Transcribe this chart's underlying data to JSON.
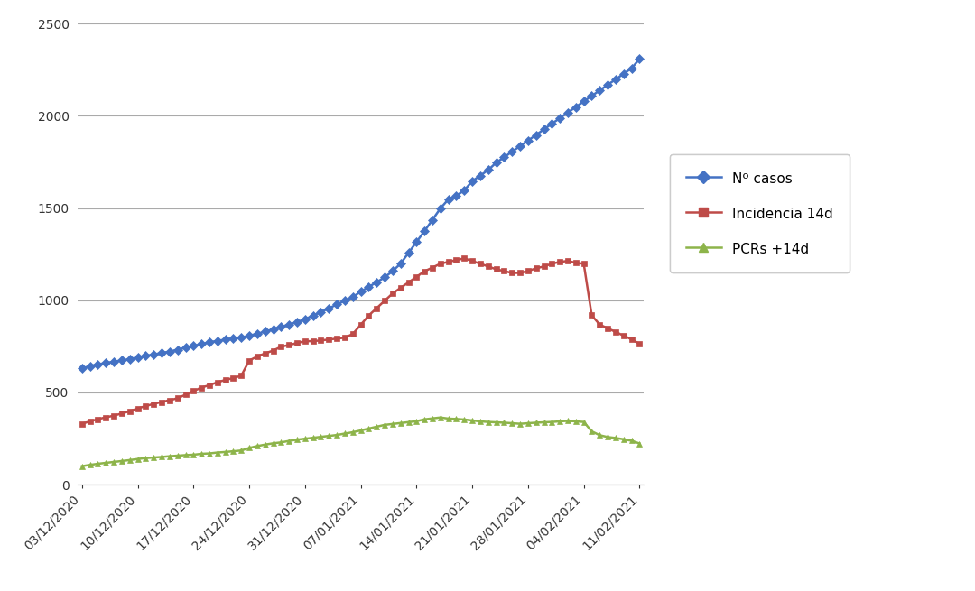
{
  "dates": [
    "03/12/2020",
    "04/12/2020",
    "05/12/2020",
    "06/12/2020",
    "07/12/2020",
    "08/12/2020",
    "09/12/2020",
    "10/12/2020",
    "11/12/2020",
    "12/12/2020",
    "13/12/2020",
    "14/12/2020",
    "15/12/2020",
    "16/12/2020",
    "17/12/2020",
    "18/12/2020",
    "19/12/2020",
    "20/12/2020",
    "21/12/2020",
    "22/12/2020",
    "23/12/2020",
    "24/12/2020",
    "25/12/2020",
    "26/12/2020",
    "27/12/2020",
    "28/12/2020",
    "29/12/2020",
    "30/12/2020",
    "31/12/2020",
    "01/01/2021",
    "02/01/2021",
    "03/01/2021",
    "04/01/2021",
    "05/01/2021",
    "06/01/2021",
    "07/01/2021",
    "08/01/2021",
    "09/01/2021",
    "10/01/2021",
    "11/01/2021",
    "12/01/2021",
    "13/01/2021",
    "14/01/2021",
    "15/01/2021",
    "16/01/2021",
    "17/01/2021",
    "18/01/2021",
    "19/01/2021",
    "20/01/2021",
    "21/01/2021",
    "22/01/2021",
    "23/01/2021",
    "24/01/2021",
    "25/01/2021",
    "26/01/2021",
    "27/01/2021",
    "28/01/2021",
    "29/01/2021",
    "30/01/2021",
    "31/01/2021",
    "01/02/2021",
    "02/02/2021",
    "03/02/2021",
    "04/02/2021",
    "05/02/2021",
    "06/02/2021",
    "07/02/2021",
    "08/02/2021",
    "09/02/2021",
    "10/02/2021",
    "11/02/2021"
  ],
  "casos": [
    630,
    643,
    652,
    660,
    667,
    674,
    681,
    690,
    698,
    706,
    714,
    722,
    732,
    742,
    752,
    762,
    772,
    780,
    786,
    792,
    798,
    808,
    818,
    830,
    843,
    856,
    868,
    881,
    898,
    916,
    936,
    956,
    977,
    997,
    1017,
    1047,
    1072,
    1098,
    1124,
    1158,
    1198,
    1257,
    1316,
    1375,
    1436,
    1498,
    1547,
    1567,
    1596,
    1646,
    1676,
    1706,
    1746,
    1775,
    1806,
    1836,
    1866,
    1896,
    1927,
    1957,
    1988,
    2018,
    2048,
    2078,
    2108,
    2138,
    2168,
    2198,
    2228,
    2258,
    2308
  ],
  "incidencia": [
    330,
    343,
    355,
    365,
    374,
    386,
    398,
    413,
    426,
    438,
    448,
    458,
    468,
    488,
    508,
    526,
    540,
    555,
    568,
    578,
    591,
    673,
    695,
    712,
    727,
    748,
    757,
    768,
    778,
    778,
    782,
    787,
    792,
    797,
    817,
    867,
    917,
    957,
    997,
    1037,
    1067,
    1097,
    1127,
    1157,
    1177,
    1198,
    1208,
    1218,
    1227,
    1213,
    1198,
    1183,
    1168,
    1158,
    1148,
    1148,
    1158,
    1173,
    1183,
    1198,
    1208,
    1213,
    1203,
    1198,
    918,
    868,
    848,
    828,
    808,
    788,
    763
  ],
  "pcrs": [
    100,
    107,
    113,
    118,
    123,
    128,
    133,
    139,
    144,
    147,
    150,
    154,
    157,
    160,
    162,
    167,
    169,
    174,
    177,
    181,
    185,
    199,
    209,
    217,
    224,
    229,
    237,
    244,
    249,
    254,
    259,
    264,
    269,
    277,
    284,
    294,
    304,
    314,
    324,
    329,
    334,
    339,
    344,
    354,
    359,
    364,
    358,
    356,
    353,
    348,
    343,
    340,
    338,
    336,
    333,
    330,
    333,
    336,
    338,
    340,
    343,
    346,
    343,
    340,
    289,
    268,
    258,
    253,
    246,
    238,
    223
  ],
  "xtick_labels": [
    "03/12/2020",
    "10/12/2020",
    "17/12/2020",
    "24/12/2020",
    "31/12/2020",
    "07/01/2021",
    "14/01/2021",
    "21/01/2021",
    "28/01/2021",
    "04/02/2021",
    "11/02/2021"
  ],
  "xtick_indices": [
    0,
    7,
    14,
    21,
    28,
    35,
    42,
    49,
    56,
    63,
    70
  ],
  "color_casos": "#4472C4",
  "color_incidencia": "#BE4B48",
  "color_pcrs": "#8DB44A",
  "ylim": [
    0,
    2500
  ],
  "ytick_step": 500,
  "legend_casos": "Nº casos",
  "legend_incidencia": "Incidencia 14d",
  "legend_pcrs": "PCRs +14d",
  "bg_color": "#FFFFFF",
  "marker_size": 5,
  "linewidth": 1.8
}
